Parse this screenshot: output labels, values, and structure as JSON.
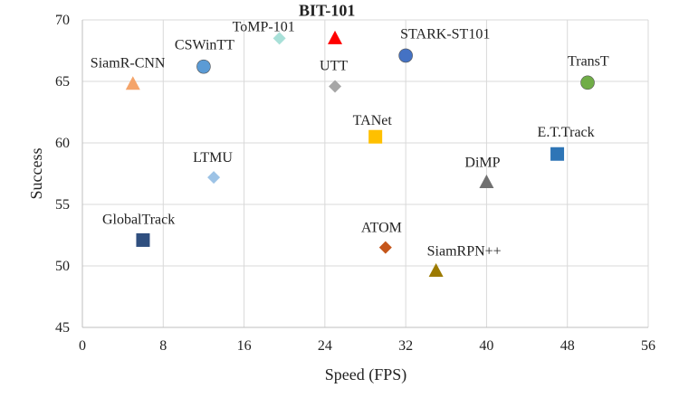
{
  "chart_data": {
    "type": "scatter",
    "title": "",
    "xlabel": "Speed (FPS)",
    "ylabel": "Success",
    "xlim": [
      0,
      56
    ],
    "ylim": [
      45,
      70
    ],
    "xticks": [
      0,
      8,
      16,
      24,
      32,
      40,
      48,
      56
    ],
    "yticks": [
      45,
      50,
      55,
      60,
      65,
      70
    ],
    "grid": true,
    "points": [
      {
        "name": "BIT-101",
        "x": 25,
        "y": 68.5,
        "shape": "triangle",
        "color": "#ff0000",
        "bold": true
      },
      {
        "name": "ToMP-101",
        "x": 19.5,
        "y": 68.5,
        "shape": "diamond",
        "color": "#a8e0d8"
      },
      {
        "name": "CSWinTT",
        "x": 12,
        "y": 66.2,
        "shape": "circle",
        "color": "#5b9bd5"
      },
      {
        "name": "STARK-ST101",
        "x": 32,
        "y": 67.1,
        "shape": "circle",
        "color": "#4472c4"
      },
      {
        "name": "SiamR-CNN",
        "x": 5,
        "y": 64.8,
        "shape": "triangle",
        "color": "#f4a46a"
      },
      {
        "name": "UTT",
        "x": 25,
        "y": 64.6,
        "shape": "diamond",
        "color": "#a6a6a6"
      },
      {
        "name": "TransT",
        "x": 50,
        "y": 64.9,
        "shape": "circle",
        "color": "#70ad47"
      },
      {
        "name": "TANet",
        "x": 29,
        "y": 60.5,
        "shape": "square",
        "color": "#ffc000"
      },
      {
        "name": "E.T.Track",
        "x": 47,
        "y": 59.1,
        "shape": "square",
        "color": "#2e75b6"
      },
      {
        "name": "LTMU",
        "x": 13,
        "y": 57.2,
        "shape": "diamond",
        "color": "#9dc3e6"
      },
      {
        "name": "DiMP",
        "x": 40,
        "y": 56.8,
        "shape": "triangle",
        "color": "#707070"
      },
      {
        "name": "GlobalTrack",
        "x": 6,
        "y": 52.1,
        "shape": "square",
        "color": "#2f4f7f"
      },
      {
        "name": "ATOM",
        "x": 30,
        "y": 51.5,
        "shape": "diamond",
        "color": "#c5561b"
      },
      {
        "name": "SiamRPN++",
        "x": 35,
        "y": 49.6,
        "shape": "triangle",
        "color": "#9c7a00"
      }
    ]
  }
}
